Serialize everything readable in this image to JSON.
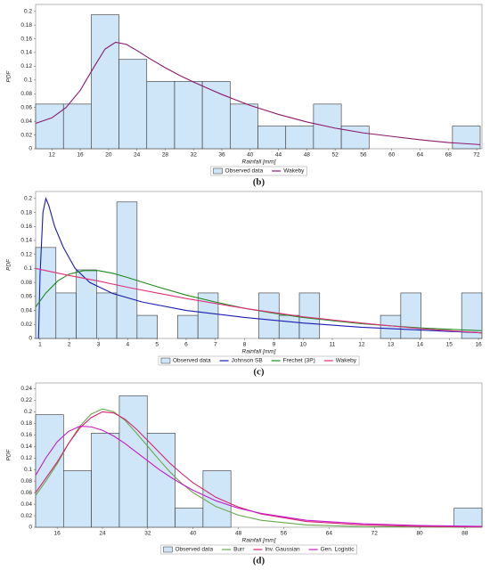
{
  "chart_data": [
    {
      "type": "histogram",
      "caption": "(b)",
      "x_label": "Rainfall [mm]",
      "y_label": "PDF",
      "hist_name": "Observed data",
      "color": "#cfe5f8",
      "bins": [
        9.7,
        13.63,
        17.55,
        21.48,
        25.4,
        29.33,
        33.25,
        37.18,
        41.1,
        45.03,
        48.95,
        52.88,
        56.8,
        60.73,
        64.65,
        68.58,
        72.5
      ],
      "values": [
        0.065,
        0.065,
        0.195,
        0.13,
        0.098,
        0.098,
        0.098,
        0.065,
        0.033,
        0.033,
        0.065,
        0.033,
        0,
        0,
        0,
        0.033
      ],
      "xlim": [
        9.7,
        72.75
      ],
      "ylim": [
        0,
        0.21
      ],
      "xticks": [
        12,
        16,
        20,
        24,
        28,
        32,
        36,
        40,
        44,
        48,
        52,
        56,
        60,
        64,
        68,
        72
      ],
      "yticks": [
        0,
        0.02,
        0.04,
        0.06,
        0.08,
        0.1,
        0.12,
        0.14,
        0.16,
        0.18,
        0.2
      ],
      "series": [
        {
          "name": "Wakeby",
          "color": "#8b1a6b",
          "x": [
            9.7,
            12,
            14,
            16,
            18,
            19.5,
            21,
            22.5,
            24,
            26,
            28,
            30,
            32,
            34,
            36,
            38,
            40,
            44,
            48,
            52,
            56,
            60,
            64,
            68,
            72.5
          ],
          "values": [
            0.037,
            0.045,
            0.06,
            0.085,
            0.12,
            0.145,
            0.155,
            0.152,
            0.143,
            0.13,
            0.118,
            0.107,
            0.097,
            0.088,
            0.079,
            0.071,
            0.063,
            0.05,
            0.039,
            0.03,
            0.023,
            0.018,
            0.013,
            0.009,
            0.006
          ]
        }
      ]
    },
    {
      "type": "histogram",
      "caption": "(c)",
      "x_label": "Rainfall [mm]",
      "y_label": "PDF",
      "hist_name": "Observed data",
      "color": "#cfe5f8",
      "bins": [
        0.85,
        1.544,
        2.238,
        2.932,
        3.626,
        4.32,
        5.014,
        5.708,
        6.402,
        7.096,
        7.79,
        8.484,
        9.178,
        9.872,
        10.566,
        11.26,
        11.954,
        12.648,
        13.342,
        14.036,
        14.73,
        15.424,
        16.118
      ],
      "values": [
        0.13,
        0.065,
        0.098,
        0.065,
        0.195,
        0.033,
        0,
        0.033,
        0.065,
        0,
        0,
        0.065,
        0.033,
        0.065,
        0,
        0,
        0,
        0.033,
        0.065,
        0,
        0,
        0.065
      ],
      "xlim": [
        0.85,
        16.12
      ],
      "ylim": [
        0,
        0.21
      ],
      "xticks": [
        1,
        2,
        3,
        4,
        5,
        6,
        7,
        8,
        9,
        10,
        11,
        12,
        13,
        14,
        15,
        16
      ],
      "yticks": [
        0,
        0.02,
        0.04,
        0.06,
        0.08,
        0.1,
        0.12,
        0.14,
        0.16,
        0.18,
        0.2
      ],
      "series": [
        {
          "name": "Johnson SB",
          "color": "#1c1cb0",
          "x": [
            0.95,
            1.0,
            1.1,
            1.2,
            1.3,
            1.5,
            1.8,
            2.2,
            2.7,
            3.5,
            4.5,
            6,
            8,
            10,
            12,
            14,
            16.1
          ],
          "values": [
            0,
            0.09,
            0.18,
            0.2,
            0.19,
            0.16,
            0.13,
            0.1,
            0.08,
            0.064,
            0.052,
            0.04,
            0.03,
            0.022,
            0.016,
            0.012,
            0.008
          ]
        },
        {
          "name": "Frechet (3P)",
          "color": "#1e8a1e",
          "x": [
            0.85,
            1.2,
            1.6,
            2,
            2.5,
            3,
            3.5,
            4,
            5,
            6,
            7,
            8,
            9,
            10,
            12,
            14,
            16.1
          ],
          "values": [
            0.045,
            0.065,
            0.082,
            0.092,
            0.097,
            0.097,
            0.093,
            0.087,
            0.074,
            0.062,
            0.052,
            0.043,
            0.036,
            0.03,
            0.021,
            0.015,
            0.011
          ]
        },
        {
          "name": "Wakeby",
          "color": "#e0307a",
          "x": [
            0.85,
            2,
            3,
            4,
            5,
            6,
            7,
            8,
            9,
            10,
            12,
            14,
            16.1
          ],
          "values": [
            0.1,
            0.09,
            0.082,
            0.073,
            0.065,
            0.057,
            0.05,
            0.043,
            0.037,
            0.031,
            0.022,
            0.014,
            0.008
          ]
        }
      ]
    },
    {
      "type": "histogram",
      "caption": "(d)",
      "x_label": "Rainfall [mm]",
      "y_label": "PDF",
      "hist_name": "Observed data",
      "color": "#cfe5f8",
      "bins": [
        12.2,
        17.125,
        22.05,
        26.975,
        31.9,
        36.825,
        41.75,
        46.675,
        51.6,
        56.525,
        61.45,
        66.375,
        71.3,
        76.225,
        81.15,
        86.075,
        91.0
      ],
      "values": [
        0.195,
        0.098,
        0.163,
        0.228,
        0.163,
        0.033,
        0.098,
        0,
        0,
        0,
        0,
        0,
        0,
        0,
        0,
        0.033
      ],
      "xlim": [
        12.2,
        91.0
      ],
      "ylim": [
        0,
        0.25
      ],
      "xticks": [
        16,
        24,
        32,
        40,
        48,
        56,
        64,
        72,
        80,
        88
      ],
      "yticks": [
        0,
        0.02,
        0.04,
        0.06,
        0.08,
        0.1,
        0.12,
        0.14,
        0.16,
        0.18,
        0.2,
        0.22,
        0.24
      ],
      "series": [
        {
          "name": "Burr",
          "color": "#6aa84f",
          "x": [
            12.2,
            14,
            16,
            18,
            20,
            22,
            24,
            26,
            28,
            30,
            32,
            34,
            36,
            38,
            40,
            44,
            48,
            52,
            60,
            70,
            91
          ],
          "values": [
            0.055,
            0.08,
            0.11,
            0.145,
            0.175,
            0.196,
            0.205,
            0.2,
            0.185,
            0.163,
            0.14,
            0.117,
            0.095,
            0.076,
            0.06,
            0.036,
            0.021,
            0.012,
            0.004,
            0.001,
            0
          ]
        },
        {
          "name": "Inv. Gaussian",
          "color": "#d6246e",
          "x": [
            12.2,
            14,
            16,
            18,
            20,
            22,
            24,
            26,
            28,
            30,
            32,
            34,
            36,
            38,
            40,
            44,
            48,
            52,
            60,
            70,
            80,
            91
          ],
          "values": [
            0.06,
            0.085,
            0.113,
            0.145,
            0.172,
            0.19,
            0.2,
            0.198,
            0.187,
            0.17,
            0.15,
            0.13,
            0.11,
            0.093,
            0.077,
            0.052,
            0.035,
            0.023,
            0.01,
            0.004,
            0.0015,
            0.0005
          ]
        },
        {
          "name": "Gen. Logistic",
          "color": "#c81ac8",
          "x": [
            12.2,
            14,
            16,
            18,
            20,
            22,
            24,
            26,
            28,
            30,
            32,
            34,
            36,
            38,
            40,
            44,
            48,
            52,
            60,
            70,
            80,
            91
          ],
          "values": [
            0.09,
            0.12,
            0.148,
            0.166,
            0.175,
            0.174,
            0.168,
            0.158,
            0.145,
            0.13,
            0.115,
            0.1,
            0.087,
            0.075,
            0.064,
            0.046,
            0.033,
            0.024,
            0.012,
            0.006,
            0.003,
            0.0015
          ]
        }
      ]
    }
  ]
}
